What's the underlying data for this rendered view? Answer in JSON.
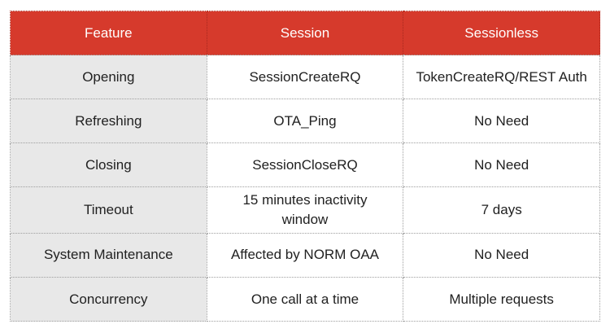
{
  "table": {
    "headers": [
      "Feature",
      "Session",
      "Sessionless"
    ],
    "rows": [
      {
        "feature": "Opening",
        "session": "SessionCreateRQ",
        "sessionless": "TokenCreateRQ/REST Auth"
      },
      {
        "feature": "Refreshing",
        "session": "OTA_Ping",
        "sessionless": "No Need"
      },
      {
        "feature": "Closing",
        "session": "SessionCloseRQ",
        "sessionless": "No Need"
      },
      {
        "feature": "Timeout",
        "session": "15 minutes inactivity window",
        "sessionless": "7 days"
      },
      {
        "feature": "System Maintenance",
        "session": "Affected by NORM OAA",
        "sessionless": "No Need"
      },
      {
        "feature": "Concurrency",
        "session": "One call at a time",
        "sessionless": "Multiple requests"
      }
    ]
  },
  "colors": {
    "header_bg": "#d63a2c",
    "header_text": "#ffffff",
    "header_border": "#a8281e",
    "feature_col_bg": "#e8e8e8",
    "cell_bg": "#ffffff",
    "border_color": "#9e9e9e",
    "text_color": "#212121",
    "page_bg": "#ffffff"
  }
}
